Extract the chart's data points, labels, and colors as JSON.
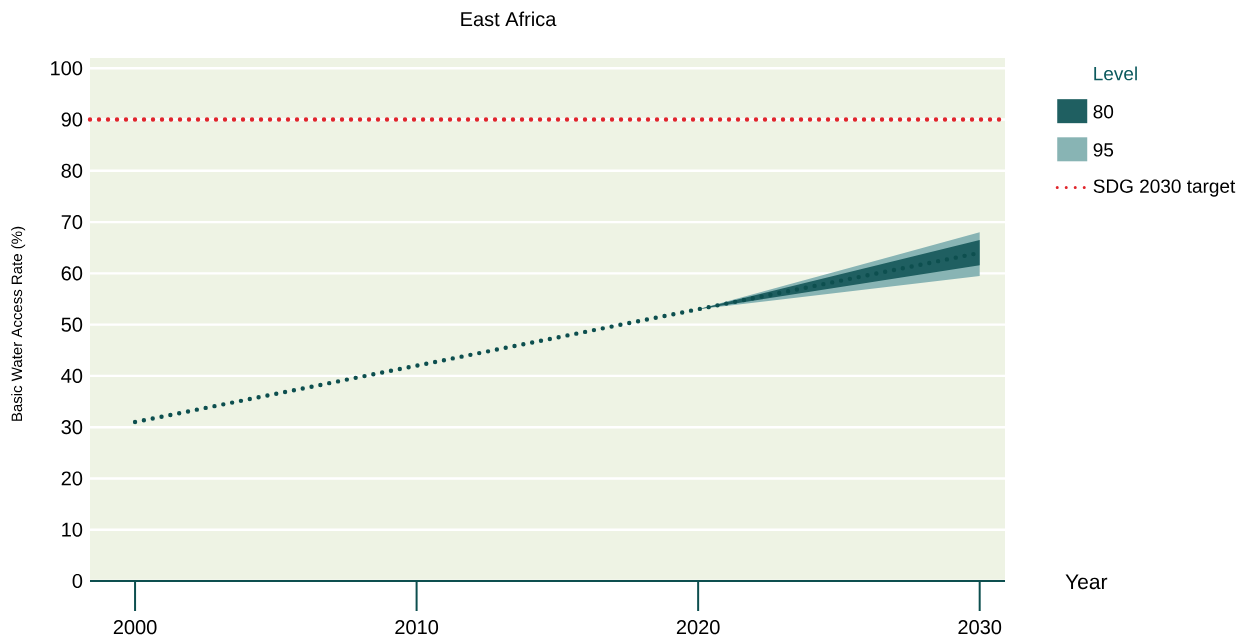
{
  "chart_data": {
    "type": "line",
    "title": "East Africa",
    "xlabel": "Year",
    "ylabel": "Basic Water Access Rate (%)",
    "legend_title": "Level",
    "xlim": [
      1998.4,
      2030.9
    ],
    "ylim": [
      0,
      102
    ],
    "xticks": [
      2000,
      2010,
      2020,
      2030
    ],
    "yticks": [
      0,
      10,
      20,
      30,
      40,
      50,
      60,
      70,
      80,
      90,
      100
    ],
    "grid": "y",
    "legend": "top right",
    "series": [
      {
        "name": "80",
        "type": "area",
        "color": "#1f5f61",
        "x": [
          2020,
          2030
        ],
        "values": [
          null,
          null
        ],
        "lower": [
          53,
          61.6
        ],
        "upper": [
          53,
          66.5
        ]
      },
      {
        "name": "95",
        "type": "area",
        "color": "#88b4b4",
        "x": [
          2020,
          2030
        ],
        "values": [
          null,
          null
        ],
        "lower": [
          53,
          59.5
        ],
        "upper": [
          53,
          68
        ]
      },
      {
        "color": "#0d4f4f",
        "line_style": "dotted",
        "x": [
          2000,
          2005,
          2010,
          2015,
          2020,
          2025,
          2030
        ],
        "values": [
          31,
          36.5,
          42,
          47.5,
          53,
          58.5,
          64
        ]
      }
    ],
    "ref_lines": [
      {
        "axis": "y",
        "value": 90,
        "label": "SDG 2030 target",
        "color": "#e0252b",
        "line_style": "dotted"
      }
    ]
  }
}
